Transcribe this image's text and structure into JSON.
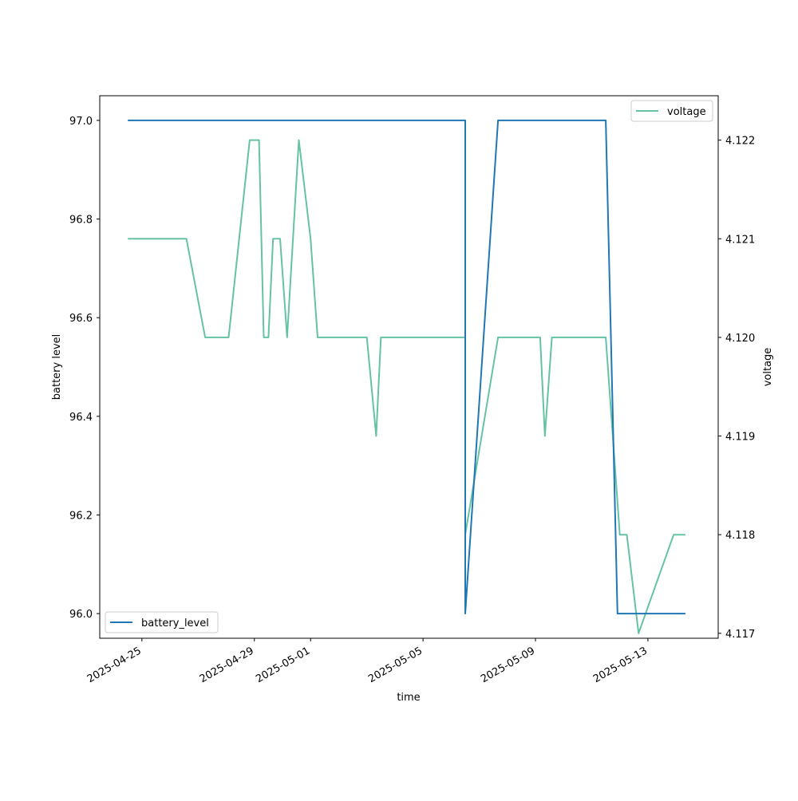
{
  "chart_data": {
    "type": "line",
    "xlabel": "time",
    "ylabel_left": "battery level",
    "ylabel_right": "voltage",
    "xlim": [
      "2025-04-23T12:00",
      "2025-05-15T12:00"
    ],
    "ylim_left": [
      95.95,
      97.05
    ],
    "ylim_right": [
      4.11695,
      4.12245
    ],
    "x_ticks": [
      "2025-04-25",
      "2025-04-29",
      "2025-05-01",
      "2025-05-05",
      "2025-05-09",
      "2025-05-13"
    ],
    "y_ticks_left": [
      "96.0",
      "96.2",
      "96.4",
      "96.6",
      "96.8",
      "97.0"
    ],
    "y_ticks_right": [
      "4.117",
      "4.118",
      "4.119",
      "4.120",
      "4.121",
      "4.122"
    ],
    "grid": false,
    "series": [
      {
        "name": "battery_level",
        "axis": "left",
        "color": "#1f77b4",
        "legend_position": "lower-left",
        "x": [
          "2025-04-24T12:00",
          "2025-05-06T12:00",
          "2025-05-06T12:01",
          "2025-05-07T16:00",
          "2025-05-11T12:00",
          "2025-05-11T22:00",
          "2025-05-14T08:00"
        ],
        "y": [
          97.0,
          97.0,
          96.0,
          97.0,
          97.0,
          96.0,
          96.0
        ]
      },
      {
        "name": "voltage",
        "axis": "right",
        "color": "#66c2a5",
        "legend_position": "upper-right",
        "x": [
          "2025-04-24T12:00",
          "2025-04-26T14:00",
          "2025-04-27T06:00",
          "2025-04-28T02:00",
          "2025-04-28T20:00",
          "2025-04-29T00:00",
          "2025-04-29T04:00",
          "2025-04-29T08:00",
          "2025-04-29T12:00",
          "2025-04-29T16:00",
          "2025-04-29T22:00",
          "2025-04-30T04:00",
          "2025-04-30T14:00",
          "2025-05-01T00:00",
          "2025-05-01T06:00",
          "2025-05-03T00:00",
          "2025-05-03T08:00",
          "2025-05-03T12:00",
          "2025-05-06T12:00",
          "2025-05-06T12:01",
          "2025-05-07T16:00",
          "2025-05-09T04:00",
          "2025-05-09T08:00",
          "2025-05-09T14:00",
          "2025-05-11T12:00",
          "2025-05-12T00:00",
          "2025-05-12T06:00",
          "2025-05-12T16:00",
          "2025-05-13T22:00",
          "2025-05-14T08:00"
        ],
        "y": [
          4.121,
          4.121,
          4.12,
          4.12,
          4.122,
          4.122,
          4.122,
          4.12,
          4.12,
          4.121,
          4.121,
          4.12,
          4.122,
          4.121,
          4.12,
          4.12,
          4.119,
          4.12,
          4.12,
          4.118,
          4.12,
          4.12,
          4.119,
          4.12,
          4.12,
          4.118,
          4.118,
          4.117,
          4.118,
          4.118
        ]
      }
    ]
  }
}
